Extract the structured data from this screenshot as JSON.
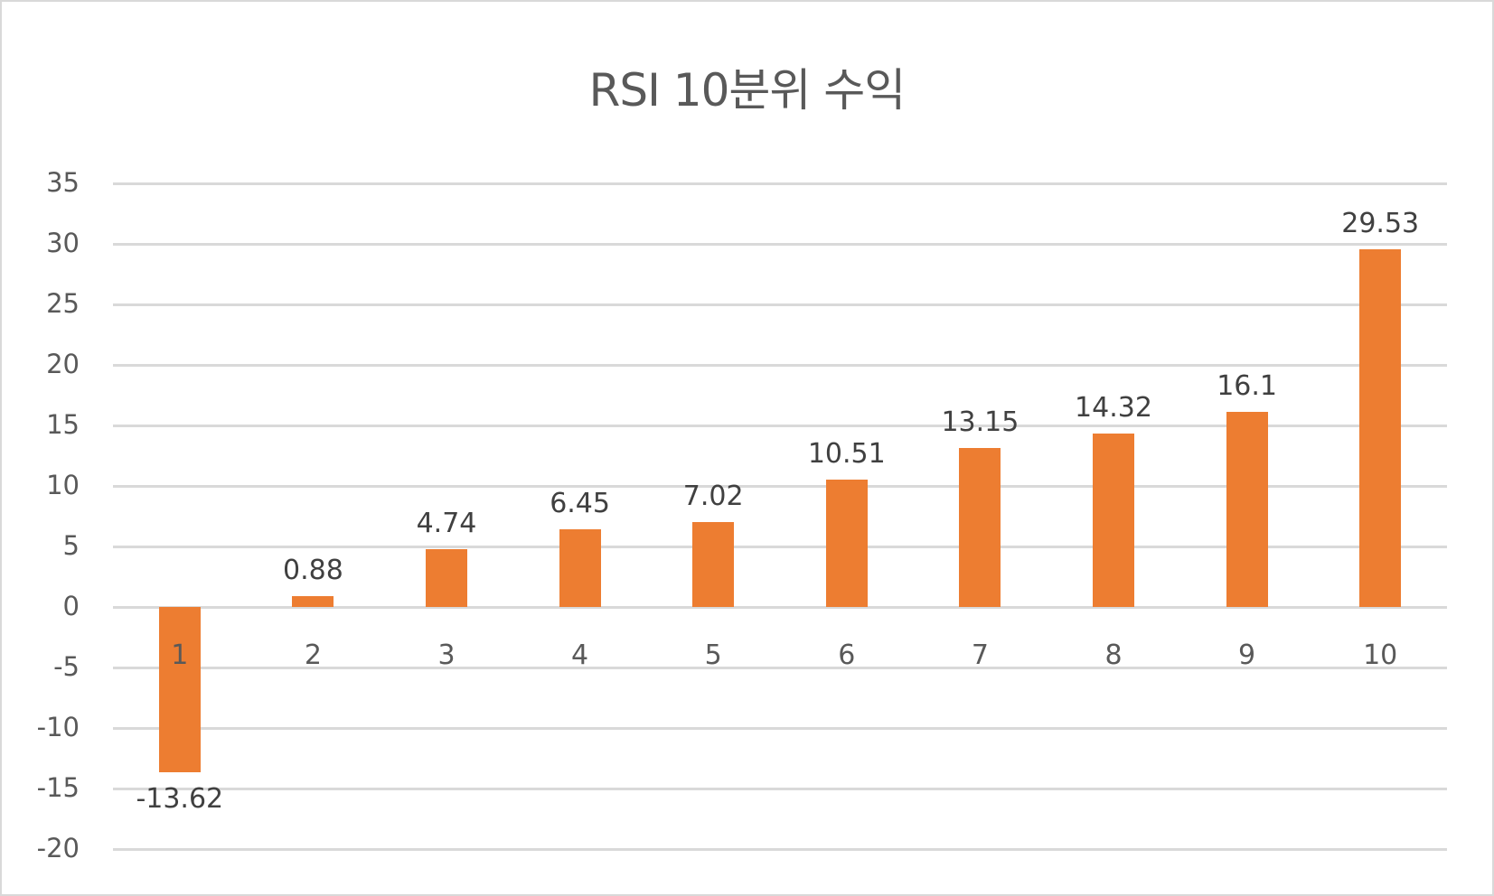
{
  "chart_data": {
    "type": "bar",
    "title": "RSI 10분위 수익",
    "xlabel": "",
    "ylabel": "",
    "categories": [
      "1",
      "2",
      "3",
      "4",
      "5",
      "6",
      "7",
      "8",
      "9",
      "10"
    ],
    "values": [
      -13.62,
      0.88,
      4.74,
      6.45,
      7.02,
      10.51,
      13.15,
      14.32,
      16.1,
      29.53
    ],
    "data_labels": [
      "-13.62",
      "0.88",
      "4.74",
      "6.45",
      "7.02",
      "10.51",
      "13.15",
      "14.32",
      "16.1",
      "29.53"
    ],
    "ylim": [
      -20,
      35
    ],
    "yticks": [
      35,
      30,
      25,
      20,
      15,
      10,
      5,
      0,
      -5,
      -10,
      -15,
      -20
    ],
    "ytick_labels": [
      "35",
      "30",
      "25",
      "20",
      "15",
      "10",
      "5",
      "0",
      "-5",
      "-10",
      "-15",
      "-20"
    ],
    "grid": true,
    "legend": null,
    "bar_color": "#ed7d31",
    "gridline_color": "#d9d9d9"
  }
}
